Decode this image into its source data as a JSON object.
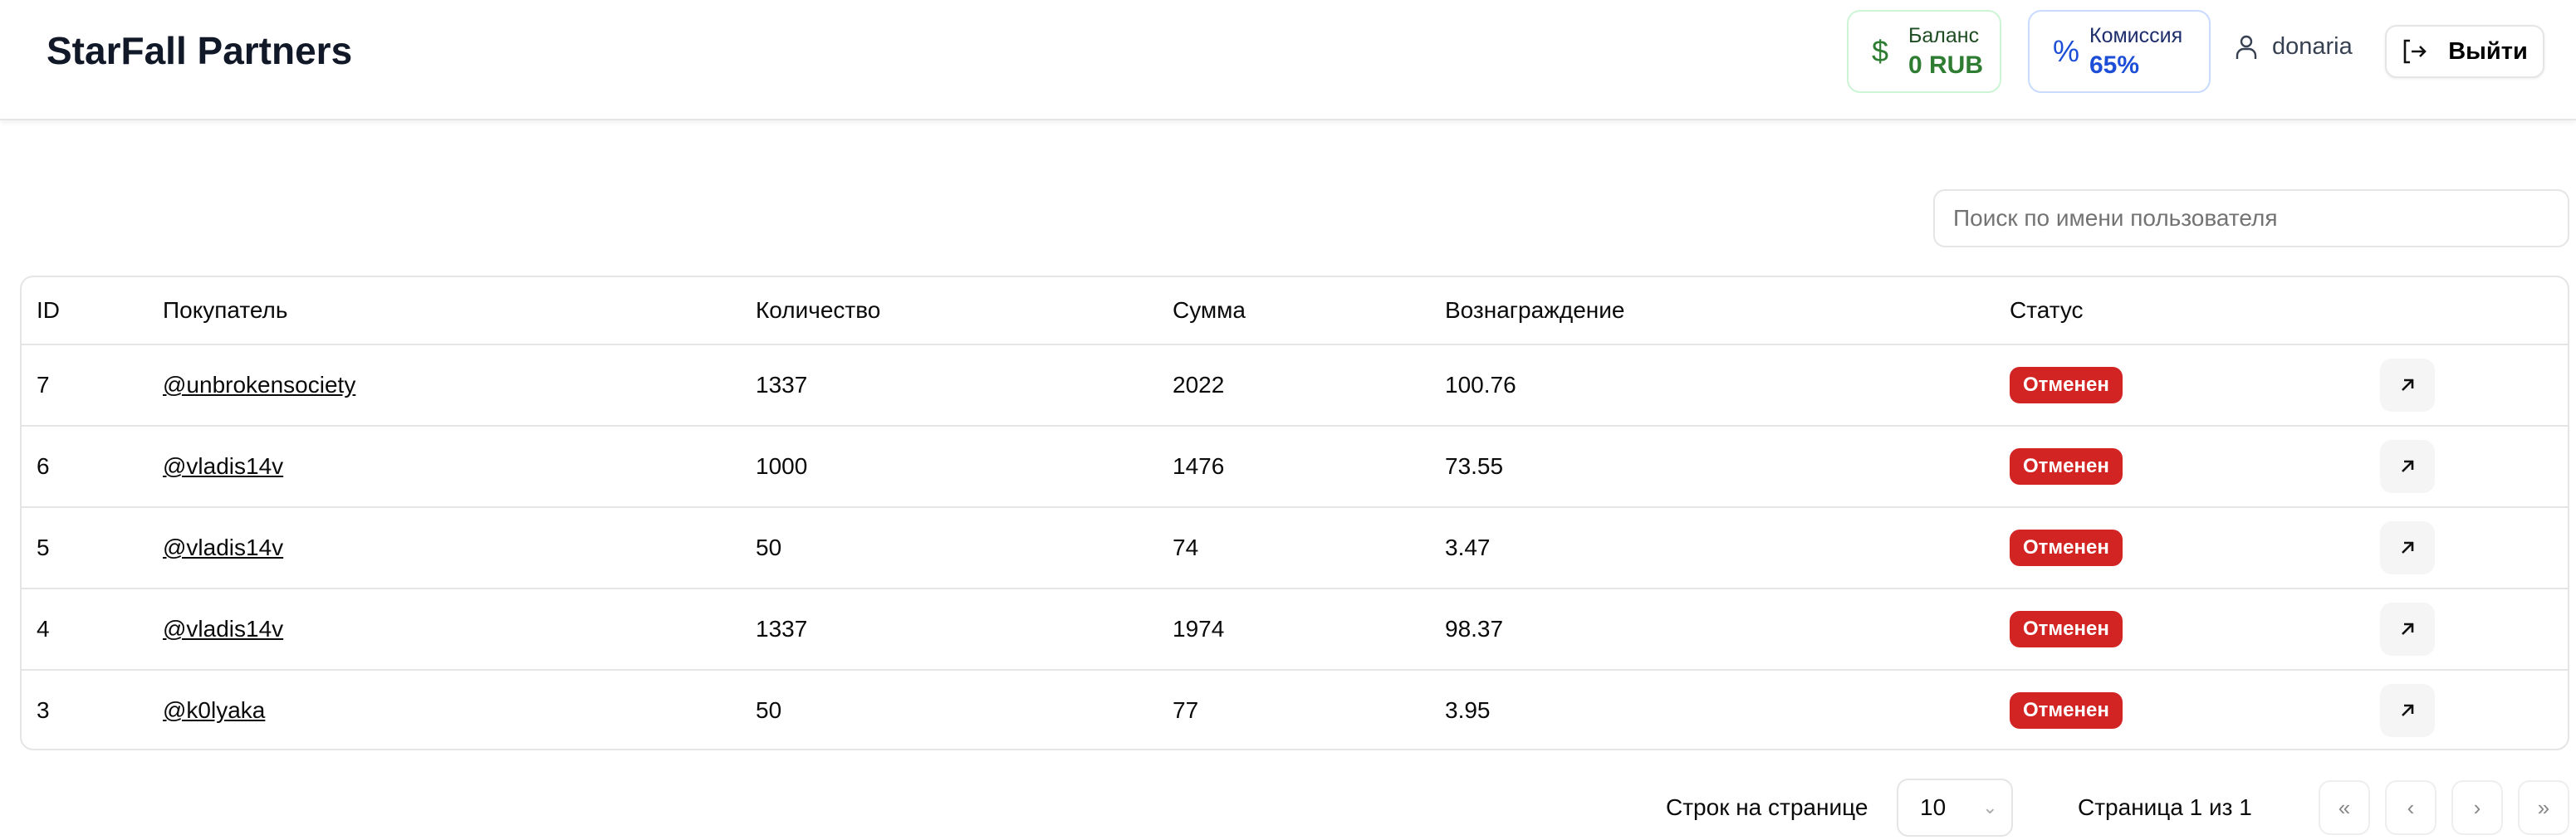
{
  "app": {
    "title": "StarFall Partners"
  },
  "header": {
    "balance": {
      "label": "Баланс",
      "value": "0 RUB",
      "icon": "dollar-icon"
    },
    "commission": {
      "label": "Комиссия",
      "value": "65%",
      "icon": "percent-icon"
    },
    "username": "donaria",
    "logout_label": "Выйти"
  },
  "colors": {
    "balance": "#2e7d32",
    "commission": "#1d4ed8",
    "status_cancelled": "#d32424"
  },
  "search": {
    "placeholder": "Поиск по имени пользователя",
    "value": ""
  },
  "table": {
    "columns": [
      "ID",
      "Покупатель",
      "Количество",
      "Сумма",
      "Вознаграждение",
      "Статус"
    ],
    "rows": [
      {
        "id": "7",
        "buyer": "@unbrokensociety",
        "qty": "1337",
        "sum": "2022",
        "reward": "100.76",
        "status": "Отменен"
      },
      {
        "id": "6",
        "buyer": "@vladis14v",
        "qty": "1000",
        "sum": "1476",
        "reward": "73.55",
        "status": "Отменен"
      },
      {
        "id": "5",
        "buyer": "@vladis14v",
        "qty": "50",
        "sum": "74",
        "reward": "3.47",
        "status": "Отменен"
      },
      {
        "id": "4",
        "buyer": "@vladis14v",
        "qty": "1337",
        "sum": "1974",
        "reward": "98.37",
        "status": "Отменен"
      },
      {
        "id": "3",
        "buyer": "@k0lyaka",
        "qty": "50",
        "sum": "77",
        "reward": "3.95",
        "status": "Отменен"
      }
    ]
  },
  "pagination": {
    "rows_per_page_label": "Строк на странице",
    "rows_per_page": "10",
    "page_info": "Страница 1 из 1"
  }
}
